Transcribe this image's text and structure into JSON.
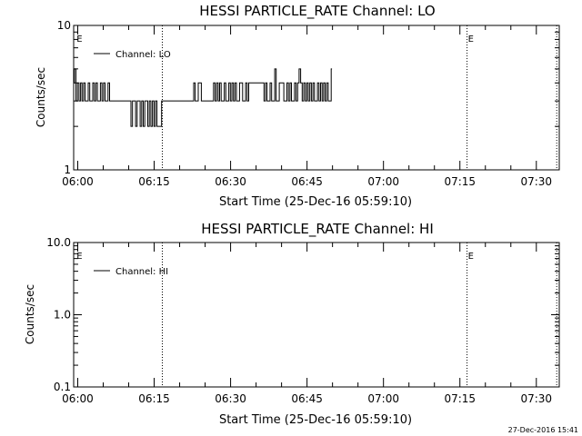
{
  "timestamp": "27-Dec-2016 15:41",
  "chart_data": [
    {
      "type": "line",
      "title": "HESSI PARTICLE_RATE Channel: LO",
      "xlabel": "Start Time (25-Dec-16 05:59:10)",
      "ylabel": "Counts/sec",
      "yscale": "log",
      "xlim_minutes": [
        -0.8,
        94.5
      ],
      "ylim": [
        1,
        10
      ],
      "x_tick_labels": [
        "06:00",
        "06:15",
        "06:30",
        "06:45",
        "07:00",
        "07:15",
        "07:30"
      ],
      "x_tick_minutes": [
        0,
        15,
        30,
        45,
        60,
        75,
        90
      ],
      "y_tick_labels": [
        "1",
        "10"
      ],
      "y_tick_values": [
        1,
        10
      ],
      "vlines_minutes": [
        16.6,
        76.4,
        94.0
      ],
      "markers": [
        {
          "label": "E",
          "minute": -0.4
        },
        {
          "label": "E",
          "minute": 76.4
        }
      ],
      "legend": {
        "label": "Channel: LO",
        "position": "top-left"
      },
      "series": [
        {
          "name": "Channel: LO",
          "x_minutes": [
            -0.8,
            -0.5,
            -0.2,
            0.1,
            0.4,
            0.7,
            1.0,
            1.3,
            1.6,
            1.9,
            2.2,
            2.5,
            2.8,
            3.1,
            3.4,
            3.7,
            4.0,
            4.3,
            4.6,
            4.9,
            5.2,
            5.5,
            5.8,
            6.1,
            6.4,
            6.7,
            7.0,
            7.3,
            7.6,
            7.9,
            8.2,
            8.5,
            8.8,
            9.1,
            9.4,
            9.7,
            10.0,
            10.3,
            10.6,
            10.9,
            11.2,
            11.5,
            11.8,
            12.1,
            12.4,
            12.7,
            13.0,
            13.3,
            13.6,
            13.9,
            14.2,
            14.5,
            14.8,
            15.1,
            15.4,
            15.7,
            16.0,
            16.3,
            16.6,
            16.9,
            17.2,
            17.5,
            17.8,
            18.1,
            18.4,
            18.7,
            19.0,
            19.3,
            19.6,
            19.9,
            20.2,
            20.5,
            20.8,
            21.1,
            21.4,
            21.7,
            22.0,
            22.3,
            22.6,
            22.9,
            23.2,
            23.5,
            23.8,
            24.1,
            24.4,
            24.7,
            25.0,
            25.3,
            25.6,
            25.9,
            26.2,
            26.5,
            26.8,
            27.1,
            27.4,
            27.7,
            28.0,
            28.3,
            28.6,
            28.9,
            29.2,
            29.5,
            29.8,
            30.1,
            30.4,
            30.7,
            31.0,
            31.3,
            31.6,
            31.9,
            32.2,
            32.5,
            32.8,
            33.1,
            33.4,
            33.7,
            34.0,
            34.3,
            34.6,
            34.9,
            35.2,
            35.5,
            35.8,
            36.1,
            36.4,
            36.7,
            37.0,
            37.3,
            37.6,
            37.9,
            38.2,
            38.5,
            38.8,
            39.1,
            39.4,
            39.7,
            40.0,
            40.3,
            40.6,
            40.9,
            41.2,
            41.5,
            41.8,
            42.1,
            42.4,
            42.7,
            43.0,
            43.3,
            43.6,
            43.9,
            44.2,
            44.5,
            44.8,
            45.1,
            45.4,
            45.7,
            46.0,
            46.3,
            46.6,
            46.9,
            47.2,
            47.5,
            47.8,
            48.1,
            48.4,
            48.7,
            49.0,
            49.3,
            49.6,
            49.9
          ],
          "values": [
            4,
            5,
            3,
            4,
            3,
            4,
            3,
            4,
            3,
            3,
            4,
            3,
            3,
            4,
            3,
            4,
            3,
            3,
            4,
            3,
            4,
            3,
            3,
            4,
            3,
            3,
            3,
            3,
            3,
            3,
            3,
            3,
            3,
            3,
            3,
            3,
            3,
            3,
            2,
            3,
            3,
            2,
            3,
            3,
            2,
            3,
            2,
            3,
            3,
            2,
            3,
            2,
            3,
            2,
            3,
            2,
            2,
            2,
            3,
            3,
            3,
            3,
            3,
            3,
            3,
            3,
            3,
            3,
            3,
            3,
            3,
            3,
            3,
            3,
            3,
            3,
            3,
            3,
            3,
            4,
            3,
            3,
            4,
            4,
            3,
            3,
            3,
            3,
            3,
            3,
            3,
            3,
            4,
            3,
            4,
            3,
            4,
            3,
            3,
            4,
            3,
            3,
            4,
            3,
            4,
            3,
            4,
            3,
            3,
            4,
            4,
            3,
            3,
            4,
            3,
            4,
            4,
            4,
            4,
            4,
            4,
            4,
            4,
            4,
            4,
            3,
            4,
            3,
            3,
            4,
            3,
            3,
            5,
            3,
            3,
            4,
            4,
            4,
            3,
            3,
            4,
            3,
            4,
            3,
            3,
            4,
            3,
            4,
            5,
            4,
            3,
            4,
            3,
            4,
            3,
            4,
            3,
            4,
            3,
            3,
            4,
            3,
            4,
            3,
            4,
            3,
            4,
            3,
            3,
            5
          ]
        }
      ]
    },
    {
      "type": "line",
      "title": "HESSI PARTICLE_RATE Channel: HI",
      "xlabel": "Start Time (25-Dec-16 05:59:10)",
      "ylabel": "Counts/sec",
      "yscale": "log",
      "xlim_minutes": [
        -0.8,
        94.5
      ],
      "ylim": [
        0.1,
        10
      ],
      "x_tick_labels": [
        "06:00",
        "06:15",
        "06:30",
        "06:45",
        "07:00",
        "07:15",
        "07:30"
      ],
      "x_tick_minutes": [
        0,
        15,
        30,
        45,
        60,
        75,
        90
      ],
      "y_tick_labels": [
        "0.1",
        "1.0",
        "10.0"
      ],
      "y_tick_values": [
        0.1,
        1,
        10
      ],
      "vlines_minutes": [
        16.6,
        76.4,
        94.0
      ],
      "markers": [
        {
          "label": "E",
          "minute": -0.4
        },
        {
          "label": "E",
          "minute": 76.4
        }
      ],
      "legend": {
        "label": "Channel: HI",
        "position": "top-left"
      },
      "series": [
        {
          "name": "Channel: HI",
          "x_minutes": [],
          "values": []
        }
      ]
    }
  ]
}
